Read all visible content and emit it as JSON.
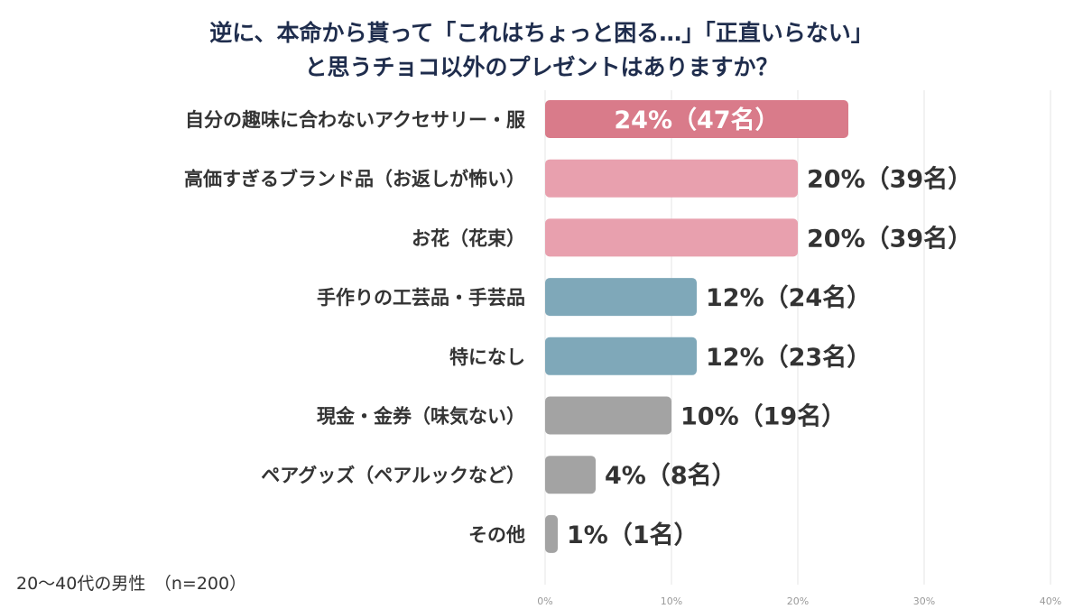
{
  "chart_data": {
    "type": "bar",
    "orientation": "horizontal",
    "title_lines": [
      "逆に、本命から貰って「これはちょっと困る…」「正直いらない」",
      "と思うチョコ以外のプレゼントはありますか？"
    ],
    "categories": [
      "自分の趣味に合わないアクセサリー・服",
      "高価すぎるブランド品（お返しが怖い）",
      "お花（花束）",
      "手作りの工芸品・手芸品",
      "特になし",
      "現金・金券（味気ない）",
      "ペアグッズ（ペアルックなど）",
      "その他"
    ],
    "values": [
      24,
      20,
      20,
      12,
      12,
      10,
      4,
      1
    ],
    "value_labels": [
      "24%（47名）",
      "20%（39名）",
      "20%（39名）",
      "12%（24名）",
      "12%（23名）",
      "10%（19名）",
      "4%（8名）",
      "1%（1名）"
    ],
    "colors": [
      "#d97b8a",
      "#e8a0ae",
      "#e8a0ae",
      "#7fa8b9",
      "#7fa8b9",
      "#a3a3a3",
      "#a3a3a3",
      "#a3a3a3"
    ],
    "xlim": [
      0,
      40
    ],
    "ticks": [
      0,
      10,
      20,
      30,
      40
    ],
    "tick_labels": [
      "0%",
      "10%",
      "20%",
      "30%",
      "40%"
    ],
    "grid": true,
    "legend": "none",
    "note": "20〜40代の男性　（n=200）"
  }
}
